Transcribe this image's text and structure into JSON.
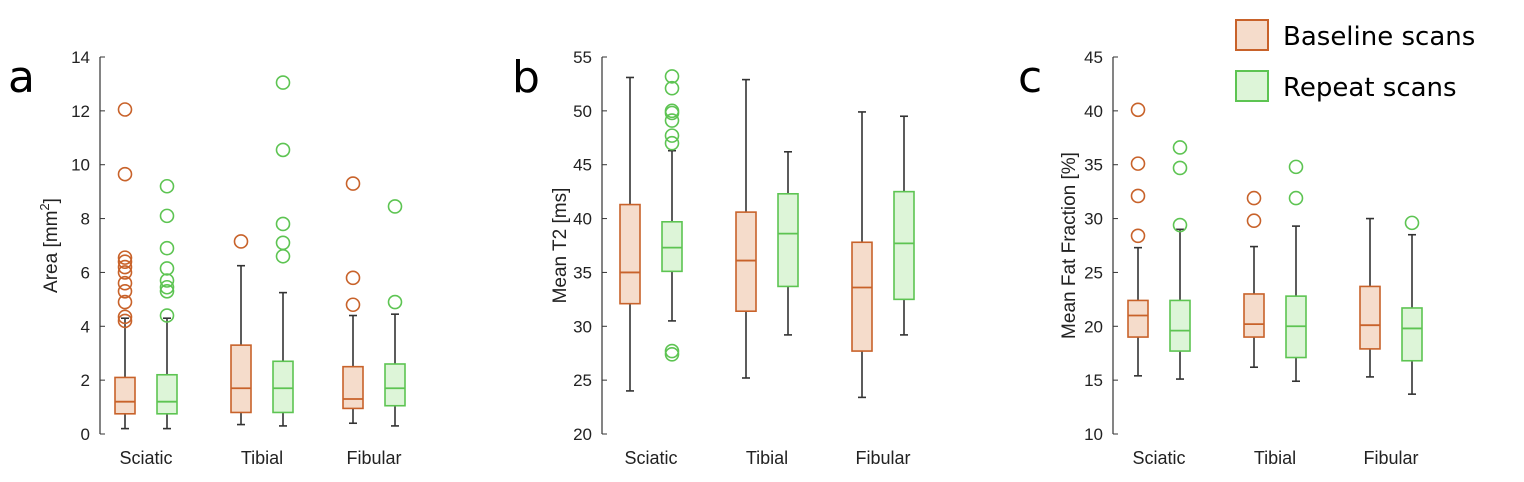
{
  "colors": {
    "baseline_edge": "#C8622A",
    "baseline_fill": "#F5DCCB",
    "repeat_edge": "#5DC452",
    "repeat_fill": "#DDF5D8",
    "whisker": "#333333",
    "axis": "#333333"
  },
  "legend": {
    "entries": [
      {
        "label": "Baseline scans",
        "series": "baseline"
      },
      {
        "label": "Repeat scans",
        "series": "repeat"
      }
    ]
  },
  "chart_data": [
    {
      "type": "boxplot",
      "panel": "a",
      "ylabel": "Area [mm",
      "ylabel_sup": "2",
      "ylabel_end": "]",
      "ylim": [
        0,
        14
      ],
      "yticks": [
        0,
        2,
        4,
        6,
        8,
        10,
        12,
        14
      ],
      "categories": [
        "Sciatic",
        "Tibial",
        "Fibular"
      ],
      "series": [
        {
          "name": "Baseline scans",
          "key": "baseline",
          "boxes": [
            {
              "min": 0.2,
              "q1": 0.75,
              "median": 1.2,
              "q3": 2.1,
              "max": 4.3,
              "outliers": [
                4.2,
                4.35,
                4.9,
                5.3,
                5.6,
                6.0,
                6.2,
                6.4,
                6.55,
                9.65,
                12.05
              ]
            },
            {
              "min": 0.35,
              "q1": 0.8,
              "median": 1.7,
              "q3": 3.3,
              "max": 6.25,
              "outliers": [
                7.15
              ]
            },
            {
              "min": 0.4,
              "q1": 0.95,
              "median": 1.3,
              "q3": 2.5,
              "max": 4.4,
              "outliers": [
                4.8,
                5.8,
                9.3
              ]
            }
          ]
        },
        {
          "name": "Repeat scans",
          "key": "repeat",
          "boxes": [
            {
              "min": 0.2,
              "q1": 0.75,
              "median": 1.2,
              "q3": 2.2,
              "max": 4.3,
              "outliers": [
                4.4,
                5.3,
                5.45,
                5.7,
                6.15,
                6.9,
                8.1,
                9.2
              ]
            },
            {
              "min": 0.3,
              "q1": 0.8,
              "median": 1.7,
              "q3": 2.7,
              "max": 5.25,
              "outliers": [
                6.6,
                7.1,
                7.8,
                10.55,
                13.05
              ]
            },
            {
              "min": 0.3,
              "q1": 1.05,
              "median": 1.7,
              "q3": 2.6,
              "max": 4.45,
              "outliers": [
                4.9,
                8.45
              ]
            }
          ]
        }
      ]
    },
    {
      "type": "boxplot",
      "panel": "b",
      "ylabel": "Mean T2 [ms]",
      "ylim": [
        20,
        55
      ],
      "yticks": [
        20,
        25,
        30,
        35,
        40,
        45,
        50,
        55
      ],
      "categories": [
        "Sciatic",
        "Tibial",
        "Fibular"
      ],
      "series": [
        {
          "name": "Baseline scans",
          "key": "baseline",
          "boxes": [
            {
              "min": 24.0,
              "q1": 32.1,
              "median": 35.0,
              "q3": 41.3,
              "max": 53.1,
              "outliers": []
            },
            {
              "min": 25.2,
              "q1": 31.4,
              "median": 36.1,
              "q3": 40.6,
              "max": 52.9,
              "outliers": []
            },
            {
              "min": 23.4,
              "q1": 27.7,
              "median": 33.6,
              "q3": 37.8,
              "max": 49.9,
              "outliers": []
            }
          ]
        },
        {
          "name": "Repeat scans",
          "key": "repeat",
          "boxes": [
            {
              "min": 30.5,
              "q1": 35.1,
              "median": 37.3,
              "q3": 39.7,
              "max": 46.3,
              "outliers": [
                27.4,
                27.7,
                47.0,
                47.7,
                49.1,
                49.8,
                50.0,
                52.1,
                53.2
              ]
            },
            {
              "min": 29.2,
              "q1": 33.7,
              "median": 38.6,
              "q3": 42.3,
              "max": 46.2,
              "outliers": []
            },
            {
              "min": 29.2,
              "q1": 32.5,
              "median": 37.7,
              "q3": 42.5,
              "max": 49.5,
              "outliers": []
            }
          ]
        }
      ]
    },
    {
      "type": "boxplot",
      "panel": "c",
      "ylabel": "Mean Fat Fraction [%]",
      "ylim": [
        10,
        45
      ],
      "yticks": [
        10,
        15,
        20,
        25,
        30,
        35,
        40,
        45
      ],
      "categories": [
        "Sciatic",
        "Tibial",
        "Fibular"
      ],
      "series": [
        {
          "name": "Baseline scans",
          "key": "baseline",
          "boxes": [
            {
              "min": 15.4,
              "q1": 19.0,
              "median": 21.0,
              "q3": 22.4,
              "max": 27.3,
              "outliers": [
                28.4,
                32.1,
                35.1,
                40.1
              ]
            },
            {
              "min": 16.2,
              "q1": 19.0,
              "median": 20.2,
              "q3": 23.0,
              "max": 27.4,
              "outliers": [
                29.8,
                31.9
              ]
            },
            {
              "min": 15.3,
              "q1": 17.9,
              "median": 20.1,
              "q3": 23.7,
              "max": 30.0,
              "outliers": []
            }
          ]
        },
        {
          "name": "Repeat scans",
          "key": "repeat",
          "boxes": [
            {
              "min": 15.1,
              "q1": 17.7,
              "median": 19.6,
              "q3": 22.4,
              "max": 29.0,
              "outliers": [
                29.4,
                34.7,
                36.6
              ]
            },
            {
              "min": 14.9,
              "q1": 17.1,
              "median": 20.0,
              "q3": 22.8,
              "max": 29.3,
              "outliers": [
                31.9,
                34.8
              ]
            },
            {
              "min": 13.7,
              "q1": 16.8,
              "median": 19.8,
              "q3": 21.7,
              "max": 28.5,
              "outliers": [
                29.6
              ]
            }
          ]
        }
      ]
    }
  ]
}
